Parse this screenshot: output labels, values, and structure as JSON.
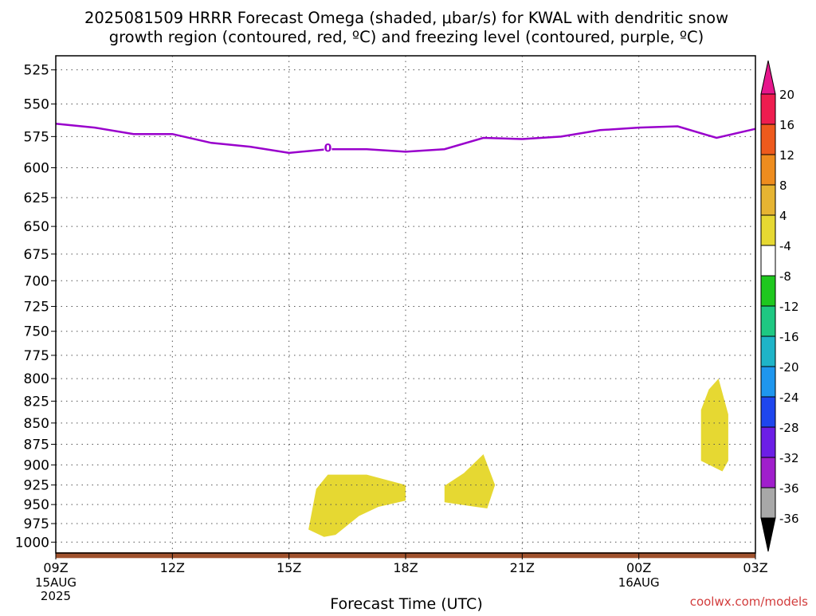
{
  "chart_data": {
    "type": "heatmap",
    "title_line1": "2025081509 HRRR Forecast Omega (shaded, μbar/s) for KWAL with dendritic snow",
    "title_line2": "growth region (contoured, red, ºC) and freezing level (contoured, purple, ºC)",
    "xlabel": "Forecast Time (UTC)",
    "ylabel": "",
    "credit": "coolwx.com/models",
    "x_range_hours": [
      0,
      18
    ],
    "y_range_hpa": [
      1015,
      515
    ],
    "y_scale": "log",
    "grid": true,
    "x_ticks": [
      {
        "hour": 0,
        "label": "09Z",
        "sub": [
          "15AUG",
          "2025"
        ]
      },
      {
        "hour": 3,
        "label": "12Z",
        "sub": []
      },
      {
        "hour": 6,
        "label": "15Z",
        "sub": []
      },
      {
        "hour": 9,
        "label": "18Z",
        "sub": []
      },
      {
        "hour": 12,
        "label": "21Z",
        "sub": []
      },
      {
        "hour": 15,
        "label": "00Z",
        "sub": [
          "16AUG"
        ]
      },
      {
        "hour": 18,
        "label": "03Z",
        "sub": []
      }
    ],
    "y_ticks": [
      525,
      550,
      575,
      600,
      625,
      650,
      675,
      700,
      725,
      750,
      775,
      800,
      825,
      850,
      875,
      900,
      925,
      950,
      975,
      1000
    ],
    "freezing_level": {
      "color": "#9900cc",
      "label": "0",
      "label_at": {
        "hour": 7,
        "p": 584
      },
      "points": [
        {
          "hour": 0,
          "p": 565
        },
        {
          "hour": 1,
          "p": 568
        },
        {
          "hour": 2,
          "p": 573
        },
        {
          "hour": 3,
          "p": 573
        },
        {
          "hour": 4,
          "p": 580
        },
        {
          "hour": 5,
          "p": 583
        },
        {
          "hour": 6,
          "p": 588
        },
        {
          "hour": 7,
          "p": 585
        },
        {
          "hour": 8,
          "p": 585
        },
        {
          "hour": 9,
          "p": 587
        },
        {
          "hour": 10,
          "p": 585
        },
        {
          "hour": 11,
          "p": 576
        },
        {
          "hour": 12,
          "p": 577
        },
        {
          "hour": 13,
          "p": 575
        },
        {
          "hour": 14,
          "p": 570
        },
        {
          "hour": 15,
          "p": 568
        },
        {
          "hour": 16,
          "p": 567
        },
        {
          "hour": 17,
          "p": 576
        },
        {
          "hour": 18,
          "p": 569
        }
      ]
    },
    "omega_regions": [
      {
        "value_range": "4 to 8",
        "color": "#e6d832",
        "points": [
          {
            "hour": 6.5,
            "p": 983
          },
          {
            "hour": 6.7,
            "p": 930
          },
          {
            "hour": 7.0,
            "p": 912
          },
          {
            "hour": 8.0,
            "p": 912
          },
          {
            "hour": 9.0,
            "p": 925
          },
          {
            "hour": 9.0,
            "p": 945
          },
          {
            "hour": 8.3,
            "p": 953
          },
          {
            "hour": 7.8,
            "p": 965
          },
          {
            "hour": 7.2,
            "p": 990
          },
          {
            "hour": 6.9,
            "p": 993
          }
        ]
      },
      {
        "value_range": "4 to 8",
        "color": "#e6d832",
        "points": [
          {
            "hour": 10.0,
            "p": 926
          },
          {
            "hour": 10.5,
            "p": 910
          },
          {
            "hour": 11.0,
            "p": 887
          },
          {
            "hour": 11.3,
            "p": 925
          },
          {
            "hour": 11.1,
            "p": 955
          },
          {
            "hour": 10.8,
            "p": 953
          },
          {
            "hour": 10.0,
            "p": 947
          }
        ]
      },
      {
        "value_range": "4 to 8",
        "color": "#e6d832",
        "points": [
          {
            "hour": 16.6,
            "p": 835
          },
          {
            "hour": 16.8,
            "p": 812
          },
          {
            "hour": 17.05,
            "p": 800
          },
          {
            "hour": 17.3,
            "p": 840
          },
          {
            "hour": 17.3,
            "p": 895
          },
          {
            "hour": 17.15,
            "p": 908
          },
          {
            "hour": 16.6,
            "p": 895
          }
        ]
      }
    ],
    "surface_bar": {
      "color": "#a0522d",
      "p_top": 1014,
      "p_bottom": 1022
    },
    "colorbar": {
      "max_label": "20",
      "levels": [
        {
          "label": "20",
          "color": "#ee1d4f"
        },
        {
          "label": "16",
          "color": "#ee5a1d"
        },
        {
          "label": "12",
          "color": "#ee8c1e"
        },
        {
          "label": "8",
          "color": "#e6b432"
        },
        {
          "label": "4",
          "color": "#e6d832"
        },
        {
          "label": "-4",
          "color": "#ffffff"
        },
        {
          "label": "-8",
          "color": "#1ec81e"
        },
        {
          "label": "-12",
          "color": "#1ec882"
        },
        {
          "label": "-16",
          "color": "#1eb4c8"
        },
        {
          "label": "-20",
          "color": "#1e96ee"
        },
        {
          "label": "-24",
          "color": "#1e46ee"
        },
        {
          "label": "-28",
          "color": "#6c1ee6"
        },
        {
          "label": "-32",
          "color": "#a01ecc"
        },
        {
          "label": "-36",
          "color": "#a8a8a8"
        }
      ],
      "top_arrow_color": "#e6168c",
      "bottom_arrow_color": "#000000"
    }
  }
}
